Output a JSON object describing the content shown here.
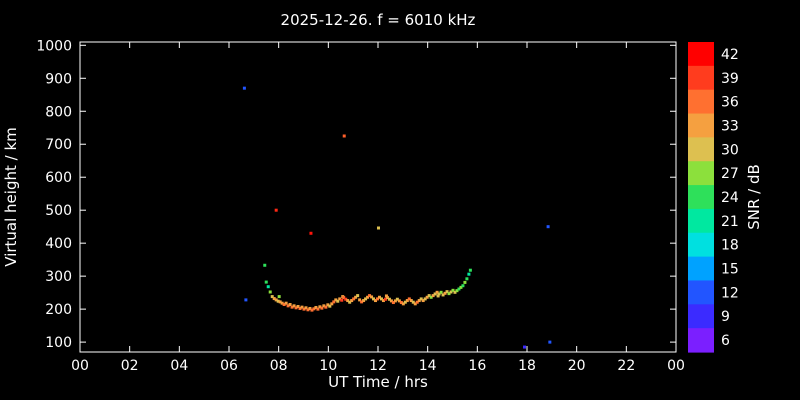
{
  "chart_data": {
    "type": "scatter",
    "title": "2025-12-26. f = 6010 kHz",
    "xlabel": "UT Time / hrs",
    "ylabel": "Virtual height / km",
    "colorbar_label": "SNR / dB",
    "xlim": [
      0,
      24
    ],
    "ylim": [
      70,
      1010
    ],
    "x_tick_values": [
      0,
      2,
      4,
      6,
      8,
      10,
      12,
      14,
      16,
      18,
      20,
      22,
      24
    ],
    "x_tick_labels": [
      "00",
      "02",
      "04",
      "06",
      "08",
      "10",
      "12",
      "14",
      "16",
      "18",
      "20",
      "22",
      "00"
    ],
    "y_tick_values": [
      100,
      200,
      300,
      400,
      500,
      600,
      700,
      800,
      900,
      1000
    ],
    "y_tick_labels": [
      "100",
      "200",
      "300",
      "400",
      "500",
      "600",
      "700",
      "800",
      "900",
      "1000"
    ],
    "grid": false,
    "colorbar": {
      "min": 6,
      "max": 42,
      "anchors": [
        {
          "v": 6,
          "c": "#7b1fff"
        },
        {
          "v": 9,
          "c": "#3b2bff"
        },
        {
          "v": 12,
          "c": "#2255ff"
        },
        {
          "v": 15,
          "c": "#00a2ff"
        },
        {
          "v": 18,
          "c": "#00e0e0"
        },
        {
          "v": 21,
          "c": "#00e8a0"
        },
        {
          "v": 24,
          "c": "#2ee05a"
        },
        {
          "v": 27,
          "c": "#8ce03c"
        },
        {
          "v": 30,
          "c": "#ddc050"
        },
        {
          "v": 33,
          "c": "#f5a040"
        },
        {
          "v": 36,
          "c": "#ff7030"
        },
        {
          "v": 39,
          "c": "#ff3c1e"
        },
        {
          "v": 42,
          "c": "#ff0000"
        }
      ]
    },
    "points": [
      [
        6.62,
        870,
        12
      ],
      [
        6.68,
        228,
        12
      ],
      [
        7.44,
        333,
        24
      ],
      [
        7.9,
        500,
        40
      ],
      [
        9.3,
        430,
        41
      ],
      [
        10.64,
        725,
        37
      ],
      [
        12.02,
        446,
        30
      ],
      [
        18.85,
        450,
        12
      ],
      [
        17.9,
        85,
        9
      ],
      [
        18.92,
        100,
        12
      ],
      [
        7.5,
        282,
        24
      ],
      [
        7.58,
        268,
        21
      ],
      [
        7.66,
        252,
        27
      ],
      [
        7.74,
        238,
        30
      ],
      [
        7.82,
        232,
        33
      ],
      [
        7.9,
        228,
        33
      ],
      [
        7.98,
        224,
        30
      ],
      [
        8.02,
        238,
        27
      ],
      [
        8.06,
        222,
        33
      ],
      [
        8.14,
        218,
        33
      ],
      [
        8.22,
        214,
        36
      ],
      [
        8.3,
        218,
        33
      ],
      [
        8.38,
        210,
        36
      ],
      [
        8.46,
        214,
        33
      ],
      [
        8.54,
        206,
        36
      ],
      [
        8.62,
        210,
        33
      ],
      [
        8.7,
        204,
        36
      ],
      [
        8.78,
        208,
        33
      ],
      [
        8.86,
        202,
        36
      ],
      [
        8.94,
        206,
        33
      ],
      [
        9.02,
        200,
        36
      ],
      [
        9.1,
        204,
        33
      ],
      [
        9.18,
        198,
        36
      ],
      [
        9.26,
        202,
        33
      ],
      [
        9.34,
        197,
        36
      ],
      [
        9.42,
        201,
        36
      ],
      [
        9.5,
        205,
        33
      ],
      [
        9.58,
        200,
        36
      ],
      [
        9.66,
        207,
        33
      ],
      [
        9.74,
        203,
        36
      ],
      [
        9.82,
        210,
        33
      ],
      [
        9.9,
        206,
        36
      ],
      [
        9.98,
        213,
        33
      ],
      [
        10.06,
        209,
        30
      ],
      [
        10.14,
        216,
        33
      ],
      [
        10.22,
        222,
        36
      ],
      [
        10.3,
        228,
        33
      ],
      [
        10.38,
        224,
        30
      ],
      [
        10.46,
        231,
        33
      ],
      [
        10.54,
        227,
        39
      ],
      [
        10.58,
        238,
        33
      ],
      [
        10.62,
        235,
        36
      ],
      [
        10.7,
        230,
        39
      ],
      [
        10.78,
        226,
        33
      ],
      [
        10.86,
        221,
        30
      ],
      [
        10.94,
        226,
        33
      ],
      [
        11.02,
        231,
        36
      ],
      [
        11.1,
        236,
        33
      ],
      [
        11.18,
        241,
        30
      ],
      [
        11.26,
        228,
        33
      ],
      [
        11.34,
        222,
        36
      ],
      [
        11.42,
        226,
        33
      ],
      [
        11.5,
        231,
        30
      ],
      [
        11.58,
        236,
        33
      ],
      [
        11.66,
        241,
        36
      ],
      [
        11.74,
        237,
        33
      ],
      [
        11.82,
        231,
        30
      ],
      [
        11.9,
        226,
        33
      ],
      [
        11.98,
        231,
        36
      ],
      [
        12.06,
        236,
        33
      ],
      [
        12.14,
        231,
        30
      ],
      [
        12.22,
        226,
        33
      ],
      [
        12.3,
        230,
        39
      ],
      [
        12.34,
        240,
        33
      ],
      [
        12.38,
        235,
        33
      ],
      [
        12.46,
        230,
        30
      ],
      [
        12.54,
        225,
        33
      ],
      [
        12.62,
        220,
        36
      ],
      [
        12.7,
        225,
        33
      ],
      [
        12.78,
        230,
        30
      ],
      [
        12.86,
        225,
        33
      ],
      [
        12.94,
        220,
        36
      ],
      [
        13.02,
        216,
        33
      ],
      [
        13.1,
        221,
        30
      ],
      [
        13.18,
        226,
        33
      ],
      [
        13.26,
        231,
        36
      ],
      [
        13.34,
        226,
        33
      ],
      [
        13.42,
        221,
        30
      ],
      [
        13.5,
        216,
        33
      ],
      [
        13.58,
        221,
        36
      ],
      [
        13.66,
        226,
        33
      ],
      [
        13.74,
        231,
        30
      ],
      [
        13.82,
        226,
        33
      ],
      [
        13.9,
        231,
        30
      ],
      [
        13.98,
        236,
        33
      ],
      [
        14.06,
        241,
        30
      ],
      [
        14.14,
        236,
        27
      ],
      [
        14.22,
        241,
        33
      ],
      [
        14.3,
        246,
        30
      ],
      [
        14.38,
        251,
        33
      ],
      [
        14.42,
        240,
        30
      ],
      [
        14.46,
        246,
        30
      ],
      [
        14.54,
        251,
        27
      ],
      [
        14.62,
        243,
        30
      ],
      [
        14.7,
        248,
        33
      ],
      [
        14.78,
        253,
        30
      ],
      [
        14.86,
        247,
        27
      ],
      [
        14.94,
        252,
        30
      ],
      [
        15.02,
        257,
        27
      ],
      [
        15.1,
        251,
        30
      ],
      [
        15.18,
        256,
        27
      ],
      [
        15.26,
        261,
        24
      ],
      [
        15.34,
        266,
        27
      ],
      [
        15.42,
        271,
        24
      ],
      [
        15.5,
        281,
        27
      ],
      [
        15.58,
        292,
        24
      ],
      [
        15.66,
        306,
        21
      ],
      [
        15.72,
        318,
        24
      ]
    ]
  }
}
